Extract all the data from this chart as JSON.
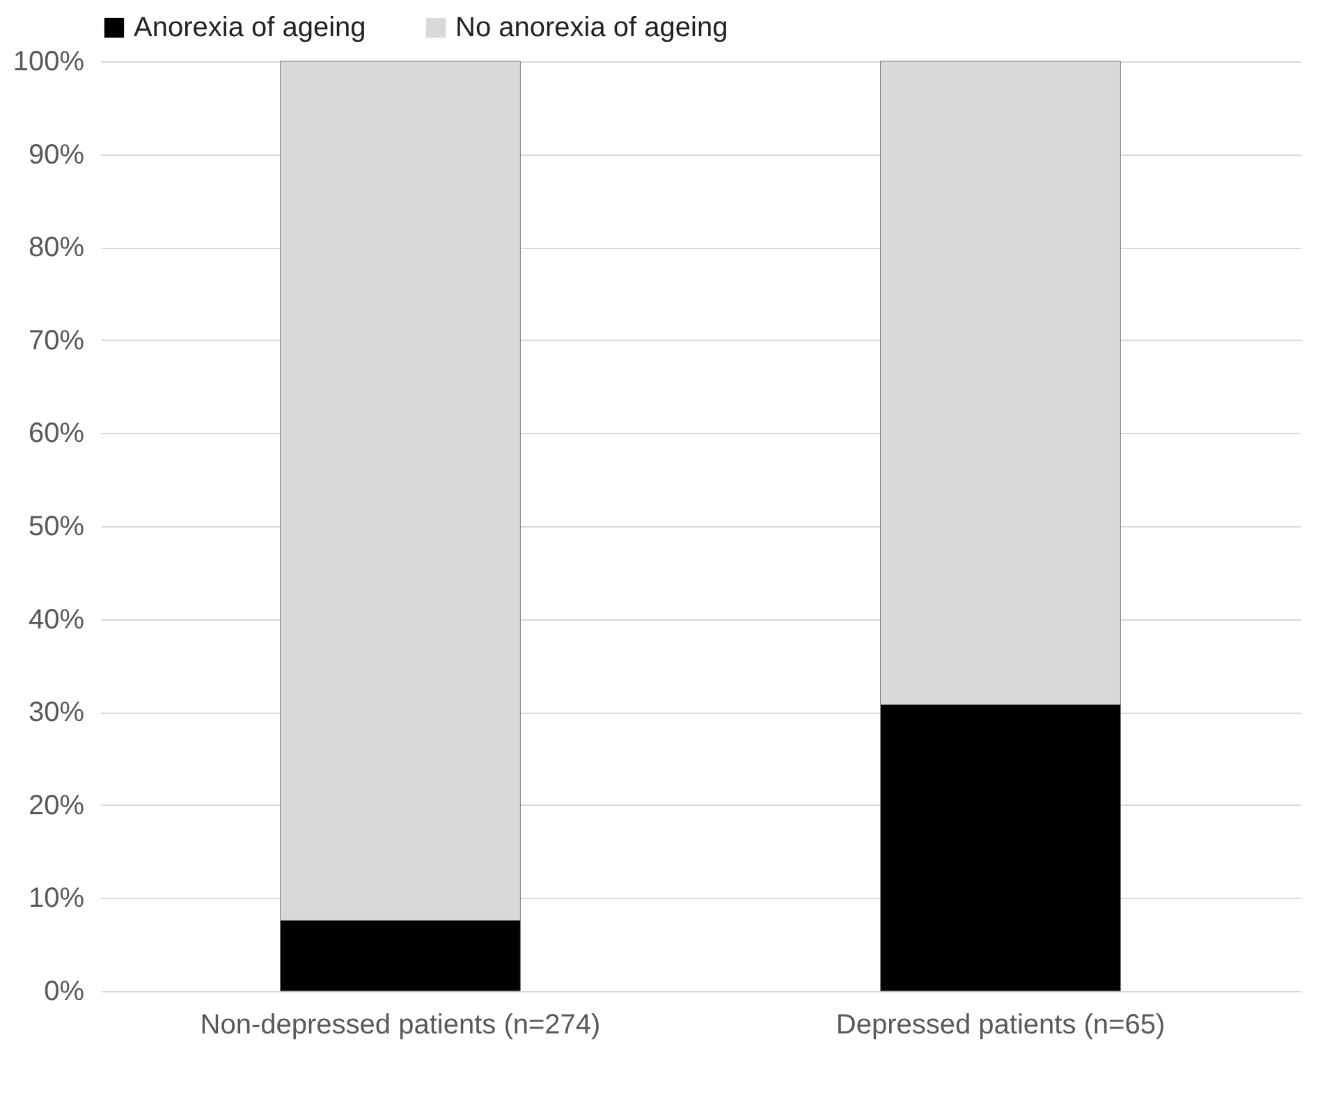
{
  "chart_data": {
    "type": "bar",
    "stacked": true,
    "categories": [
      "Non-depressed patients (n=274)",
      "Depressed patients (n=65)"
    ],
    "series": [
      {
        "name": "Anorexia of ageing",
        "color": "#000000",
        "values": [
          7.6,
          30.8
        ]
      },
      {
        "name": "No anorexia of ageing",
        "color": "#d9d9d9",
        "values": [
          92.4,
          69.2
        ]
      }
    ],
    "ylim": [
      0,
      100
    ],
    "yticks": [
      {
        "value": 0,
        "label": "0%"
      },
      {
        "value": 10,
        "label": "10%"
      },
      {
        "value": 20,
        "label": "20%"
      },
      {
        "value": 30,
        "label": "30%"
      },
      {
        "value": 40,
        "label": "40%"
      },
      {
        "value": 50,
        "label": "50%"
      },
      {
        "value": 60,
        "label": "60%"
      },
      {
        "value": 70,
        "label": "70%"
      },
      {
        "value": 80,
        "label": "80%"
      },
      {
        "value": 90,
        "label": "90%"
      },
      {
        "value": 100,
        "label": "100%"
      }
    ],
    "grid": "y",
    "legend": "top"
  }
}
